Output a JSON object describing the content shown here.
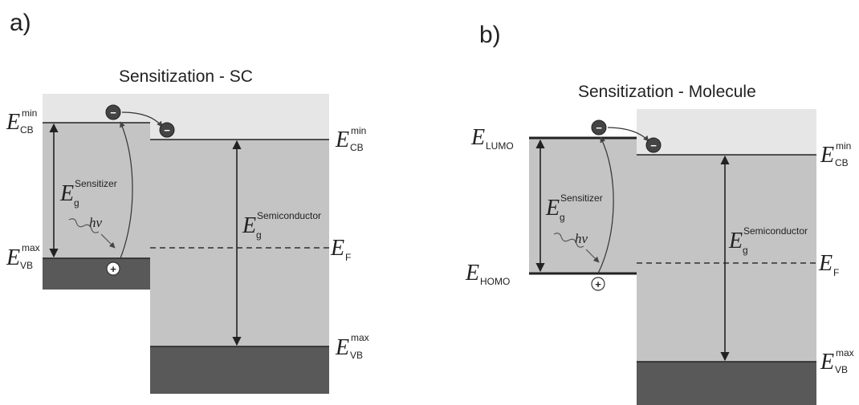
{
  "panel_a": {
    "label": "a)",
    "title": "Sensitization - SC",
    "left_cb": {
      "E": "E",
      "sup": "min",
      "sub": "CB"
    },
    "left_vb": {
      "E": "E",
      "sup": "max",
      "sub": "VB"
    },
    "left_gap": {
      "E": "E",
      "sup": "Sensitizer",
      "sub": "g"
    },
    "photon": "hν",
    "electron": "−",
    "hole": "+",
    "right_cb": {
      "E": "E",
      "sup": "min",
      "sub": "CB"
    },
    "right_gap": {
      "E": "E",
      "sup": "Semiconductor",
      "sub": "g"
    },
    "fermi": {
      "E": "E",
      "sub": "F"
    },
    "right_vb": {
      "E": "E",
      "sup": "max",
      "sub": "VB"
    }
  },
  "panel_b": {
    "label": "b)",
    "title": "Sensitization - Molecule",
    "lumo": {
      "E": "E",
      "sub": "LUMO"
    },
    "homo": {
      "E": "E",
      "sub": "HOMO"
    },
    "left_gap": {
      "E": "E",
      "sup": "Sensitizer",
      "sub": "g"
    },
    "photon": "hν",
    "electron": "−",
    "hole": "+",
    "right_cb": {
      "E": "E",
      "sup": "min",
      "sub": "CB"
    },
    "right_gap": {
      "E": "E",
      "sup": "Semiconductor",
      "sub": "g"
    },
    "fermi": {
      "E": "E",
      "sub": "F"
    },
    "right_vb": {
      "E": "E",
      "sup": "max",
      "sub": "VB"
    }
  },
  "colors": {
    "conduction_band": "#e6e6e6",
    "band_gap": "#c4c4c4",
    "valence_band": "#595959",
    "line": "#222222",
    "fermi_dashed": "#555555",
    "arrow": "#333333"
  }
}
